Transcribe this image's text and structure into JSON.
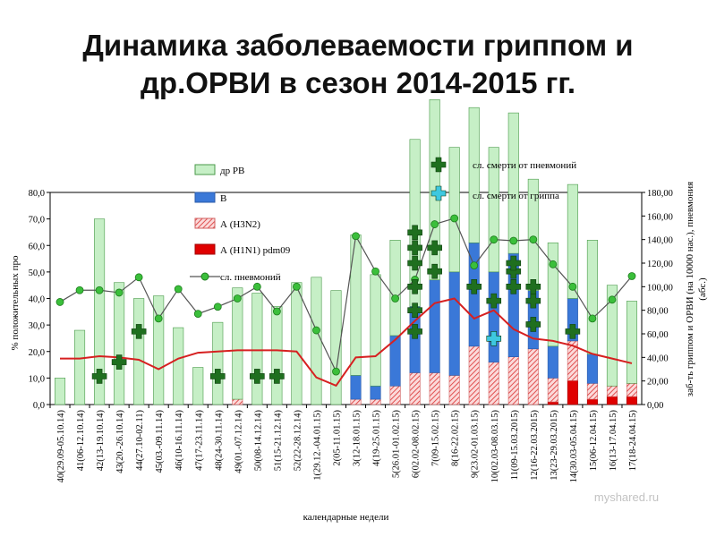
{
  "page": {
    "title_line1": "Динамика заболеваемости гриппом и",
    "title_line2": "др.ОРВИ в сезон 2014-2015 гг."
  },
  "chart_data": {
    "type": "bar",
    "xlabel": "календарные недели",
    "ylabel_left": "% положительных про",
    "ylabel_right_line1": "заб-ть гриппом и ОРВИ (на 10000 нас.), пневмония",
    "ylabel_right_line2": "(абс.)",
    "ylim_left": [
      0,
      80
    ],
    "ylim_right": [
      0,
      180
    ],
    "left_ticks": [
      "0,0",
      "10,0",
      "20,0",
      "30,0",
      "40,0",
      "50,0",
      "60,0",
      "70,0",
      "80,0"
    ],
    "right_ticks": [
      "0,00",
      "20,00",
      "40,00",
      "60,00",
      "80,00",
      "100,00",
      "120,00",
      "140,00",
      "160,00",
      "180,00"
    ],
    "categories": [
      "40(29.09-05.10.14)",
      "41(06-12.10.14)",
      "42(13-19.10.14)",
      "43(20.-26.10.14)",
      "44(27.10-02.11)",
      "45(03.-09.11.14)",
      "46(10-16.11.14)",
      "47(17-23.11.14)",
      "48(24-30.11.14)",
      "49(01.-07.12.14)",
      "50(08-14.12.14)",
      "51(15-21.12.14)",
      "52(22-28.12.14)",
      "1(29.12.-04.01.15)",
      "2(05-11.01.15)",
      "3(12-18.01.15)",
      "4(19-25.01.15)",
      "5(26.01-01.02.15)",
      "6(02.02-08.02.15)",
      "7(09-15.02.15)",
      "8(16-22.02.15)",
      "9(23.02-01.03.15)",
      "10(02.03-08.03.15)",
      "11(09-15.03.2015)",
      "12(16-22.03.2015)",
      "13(23-29.03.2015)",
      "14(30.03-05.04.15)",
      "15(06-12.04.15)",
      "16(13-17.04.15)",
      "17(18-24.04.15)"
    ],
    "series": [
      {
        "name": "др РВ",
        "kind": "bar",
        "color": "#c6efc6",
        "values": [
          10,
          28,
          70,
          46,
          40,
          41,
          29,
          14,
          31,
          42,
          42,
          37,
          46,
          48,
          43,
          53,
          42,
          36,
          63,
          68,
          47,
          51,
          47,
          53,
          42,
          39,
          43,
          43,
          38,
          31
        ]
      },
      {
        "name": "В",
        "kind": "bar",
        "color": "#3a78d8",
        "values": [
          0,
          0,
          0,
          0,
          0,
          0,
          0,
          0,
          0,
          0,
          0,
          0,
          0,
          0,
          0,
          9,
          5,
          19,
          25,
          35,
          39,
          39,
          34,
          39,
          22,
          12,
          16,
          11,
          0,
          0
        ]
      },
      {
        "name": "А (H3N2)",
        "kind": "bar",
        "color": "#f3b8b8",
        "values": [
          0,
          0,
          0,
          0,
          0,
          0,
          0,
          0,
          0,
          2,
          0,
          0,
          0,
          0,
          0,
          2,
          2,
          7,
          12,
          12,
          11,
          22,
          16,
          18,
          21,
          9,
          15,
          6,
          4,
          5
        ]
      },
      {
        "name": "А (H1N1) pdm09",
        "kind": "bar",
        "color": "#e00000",
        "values": [
          0,
          0,
          0,
          0,
          0,
          0,
          0,
          0,
          0,
          0,
          0,
          0,
          0,
          0,
          0,
          0,
          0,
          0,
          0,
          0,
          0,
          0,
          0,
          0,
          0,
          1,
          9,
          2,
          3,
          3
        ]
      },
      {
        "name": "сл. пневмоний",
        "kind": "line_markers",
        "axis": "right",
        "color": "#3bbf3b",
        "values": [
          87,
          97,
          97,
          95,
          108,
          73,
          98,
          77,
          83,
          90,
          100,
          79,
          100,
          63,
          28,
          143,
          113,
          90,
          106,
          153,
          158,
          118,
          140,
          139,
          140,
          119,
          100,
          73,
          89,
          109
        ]
      },
      {
        "name": "заб-ть гриппом и ОРВИ",
        "kind": "line",
        "axis": "right",
        "color": "#d62020",
        "values": [
          39,
          39,
          41,
          40,
          38,
          30,
          39,
          44,
          45,
          46,
          46,
          46,
          45,
          23,
          16,
          40,
          41,
          55,
          71,
          86,
          90,
          73,
          80,
          64,
          56,
          54,
          50,
          43,
          39,
          35
        ]
      }
    ],
    "legend": [
      {
        "label": "др РВ",
        "symbol": "bar-light-green"
      },
      {
        "label": "В",
        "symbol": "bar-blue"
      },
      {
        "label": "А (H3N2)",
        "symbol": "bar-hatched-pink"
      },
      {
        "label": "А (H1N1) pdm09",
        "symbol": "bar-red"
      },
      {
        "label": "сл. пневмоний",
        "symbol": "line-green-circle"
      },
      {
        "label": "сл. смерти от пневмоний",
        "symbol": "cross-dark-green"
      },
      {
        "label": "сл. смерти от гриппа",
        "symbol": "cross-cyan"
      }
    ],
    "deaths_pneumonia": {
      "color": "#1f6f1f",
      "points": [
        [
          2,
          24
        ],
        [
          3,
          36
        ],
        [
          4,
          62
        ],
        [
          8,
          24
        ],
        [
          10,
          24
        ],
        [
          11,
          24
        ],
        [
          18,
          62
        ],
        [
          18,
          80
        ],
        [
          18,
          100
        ],
        [
          18,
          120
        ],
        [
          18,
          133
        ],
        [
          18,
          146
        ],
        [
          19,
          113
        ],
        [
          19,
          133
        ],
        [
          21,
          100
        ],
        [
          22,
          88
        ],
        [
          23,
          100
        ],
        [
          23,
          113
        ],
        [
          23,
          120
        ],
        [
          24,
          68
        ],
        [
          24,
          88
        ],
        [
          24,
          100
        ],
        [
          26,
          62
        ]
      ]
    },
    "deaths_flu": {
      "color": "#3ec8e0",
      "points": [
        [
          22,
          56
        ]
      ]
    },
    "watermark": "myshared.ru"
  }
}
